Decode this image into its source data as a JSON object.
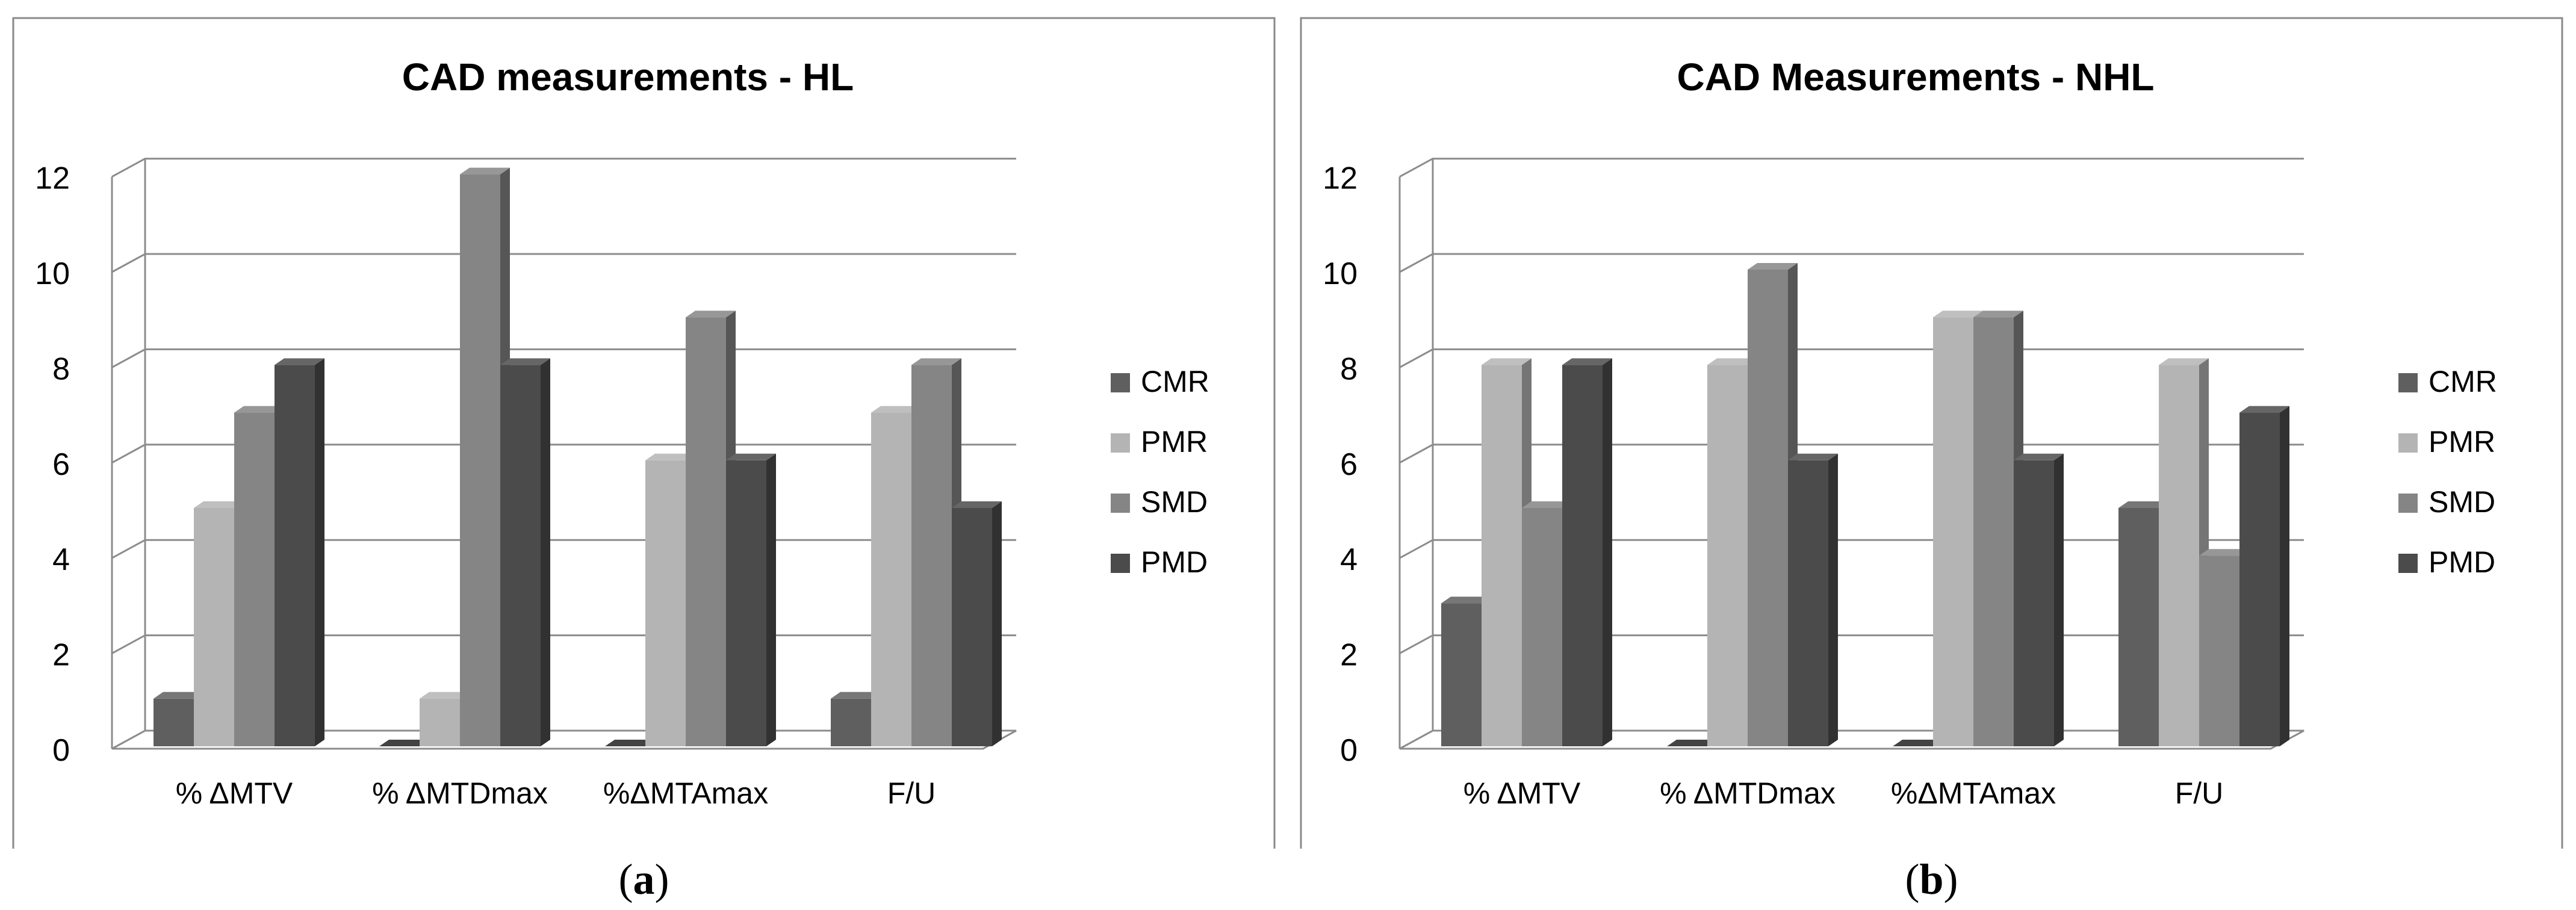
{
  "chart_data": [
    {
      "type": "bar",
      "title": "CAD measurements - HL",
      "label": "a",
      "categories": [
        "% ΔMTV",
        "% ΔMTDmax",
        "%ΔMTAmax",
        "F/U"
      ],
      "series": [
        {
          "name": "CMR",
          "values": [
            1,
            0,
            0,
            1
          ]
        },
        {
          "name": "PMR",
          "values": [
            5,
            1,
            6,
            7
          ]
        },
        {
          "name": "SMD",
          "values": [
            7,
            12,
            9,
            8
          ]
        },
        {
          "name": "PMD",
          "values": [
            8,
            8,
            6,
            5
          ]
        }
      ],
      "yticks": [
        "0",
        "2",
        "4",
        "6",
        "8",
        "10",
        "12"
      ],
      "ylim": [
        0,
        12
      ],
      "xlabel": "",
      "ylabel": "",
      "grid": true,
      "legend": "right"
    },
    {
      "type": "bar",
      "title": "CAD Measurements - NHL",
      "label": "b",
      "categories": [
        "% ΔMTV",
        "% ΔMTDmax",
        "%ΔMTAmax",
        "F/U"
      ],
      "series": [
        {
          "name": "CMR",
          "values": [
            3,
            0,
            0,
            5
          ]
        },
        {
          "name": "PMR",
          "values": [
            8,
            8,
            9,
            8
          ]
        },
        {
          "name": "SMD",
          "values": [
            5,
            10,
            9,
            4
          ]
        },
        {
          "name": "PMD",
          "values": [
            8,
            6,
            6,
            7
          ]
        }
      ],
      "yticks": [
        "0",
        "2",
        "4",
        "6",
        "8",
        "10",
        "12"
      ],
      "ylim": [
        0,
        12
      ],
      "xlabel": "",
      "ylabel": "",
      "grid": true,
      "legend": "right"
    }
  ],
  "colors": {
    "CMR": "#5f5f5f",
    "PMR": "#b4b4b4",
    "SMD": "#858585",
    "PMD": "#4b4b4b",
    "grid": "#8c8c8c",
    "border": "#8a8a8a",
    "text": "#000000"
  }
}
